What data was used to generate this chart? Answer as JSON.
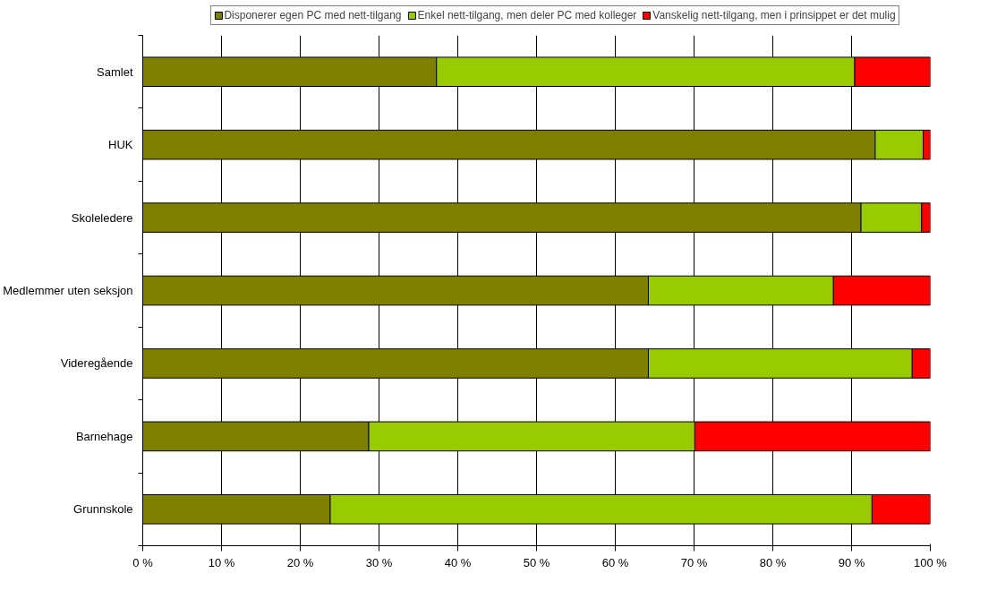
{
  "chart_data": {
    "type": "bar",
    "orientation": "horizontal",
    "stacked": true,
    "categories": [
      "Samlet",
      "HUK",
      "Skoleledere",
      "Medlemmer uten seksjon",
      "Videregående",
      "Barnehage",
      "Grunnskole"
    ],
    "series": [
      {
        "name": "Disponerer egen PC med nett-tilgang",
        "color": "#808000",
        "values": [
          37.3,
          93.0,
          91.2,
          64.2,
          64.2,
          28.7,
          23.8
        ]
      },
      {
        "name": "Enkel nett-tilgang, men deler PC med kolleger",
        "color": "#99cc00",
        "values": [
          53.1,
          6.1,
          7.7,
          23.5,
          33.5,
          41.4,
          68.8
        ]
      },
      {
        "name": "Vanskelig nett-tilgang, men i prinsippet er det mulig",
        "color": "#ff0000",
        "values": [
          9.6,
          0.9,
          1.1,
          12.3,
          2.3,
          29.9,
          7.4
        ]
      }
    ],
    "xlim": [
      0,
      100
    ],
    "xticks": [
      {
        "value": 0,
        "label": "0 %"
      },
      {
        "value": 10,
        "label": "10 %"
      },
      {
        "value": 20,
        "label": "20 %"
      },
      {
        "value": 30,
        "label": "30 %"
      },
      {
        "value": 40,
        "label": "40 %"
      },
      {
        "value": 50,
        "label": "50 %"
      },
      {
        "value": 60,
        "label": "60 %"
      },
      {
        "value": 70,
        "label": "70 %"
      },
      {
        "value": 80,
        "label": "80 %"
      },
      {
        "value": 90,
        "label": "90 %"
      },
      {
        "value": 100,
        "label": "100 %"
      }
    ],
    "grid": "x",
    "legend": "top"
  }
}
